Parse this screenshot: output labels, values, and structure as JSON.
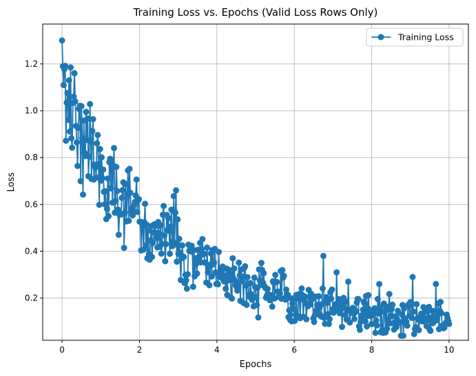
{
  "chart_data": {
    "type": "line",
    "title": "Training Loss vs. Epochs (Valid Loss Rows Only)",
    "xlabel": "Epochs",
    "ylabel": "Loss",
    "xlim": [
      -0.5,
      10.5
    ],
    "ylim": [
      0.02,
      1.37
    ],
    "xticks": [
      0,
      2,
      4,
      6,
      8,
      10
    ],
    "yticks": [
      0.2,
      0.4,
      0.6,
      0.8,
      1.0,
      1.2
    ],
    "ytick_labels": [
      "0.2",
      "0.4",
      "0.6",
      "0.8",
      "1.0",
      "1.2"
    ],
    "grid": true,
    "legend_position": "top-right",
    "series": [
      {
        "name": "Training Loss",
        "color": "#1f77b4",
        "marker": "circle",
        "anchors": [
          [
            0.0,
            1.3
          ],
          [
            0.02,
            1.19
          ],
          [
            0.05,
            1.07
          ],
          [
            0.1,
            1.04
          ],
          [
            0.15,
            1.02
          ],
          [
            0.2,
            0.98
          ],
          [
            0.25,
            0.96
          ],
          [
            0.3,
            1.06
          ],
          [
            0.35,
            0.94
          ],
          [
            0.45,
            0.92
          ],
          [
            0.55,
            0.88
          ],
          [
            0.65,
            0.9
          ],
          [
            0.75,
            0.84
          ],
          [
            0.85,
            0.8
          ],
          [
            0.95,
            0.77
          ],
          [
            1.05,
            0.73
          ],
          [
            1.15,
            0.68
          ],
          [
            1.25,
            0.7
          ],
          [
            1.4,
            0.66
          ],
          [
            1.55,
            0.63
          ],
          [
            1.7,
            0.64
          ],
          [
            1.85,
            0.63
          ],
          [
            1.95,
            0.58
          ],
          [
            2.05,
            0.48
          ],
          [
            2.2,
            0.45
          ],
          [
            2.4,
            0.47
          ],
          [
            2.6,
            0.46
          ],
          [
            2.8,
            0.47
          ],
          [
            2.95,
            0.48
          ],
          [
            3.05,
            0.35
          ],
          [
            3.3,
            0.35
          ],
          [
            3.6,
            0.34
          ],
          [
            3.9,
            0.33
          ],
          [
            4.2,
            0.29
          ],
          [
            4.5,
            0.27
          ],
          [
            5.0,
            0.24
          ],
          [
            5.5,
            0.22
          ],
          [
            6.0,
            0.2
          ],
          [
            6.5,
            0.18
          ],
          [
            7.0,
            0.16
          ],
          [
            7.5,
            0.145
          ],
          [
            8.0,
            0.135
          ],
          [
            8.5,
            0.125
          ],
          [
            9.0,
            0.12
          ],
          [
            9.5,
            0.115
          ],
          [
            10.0,
            0.11
          ]
        ],
        "spikes": [
          [
            0.3,
            1.06
          ],
          [
            1.22,
            0.78
          ],
          [
            1.2,
            0.55
          ],
          [
            1.72,
            0.53
          ],
          [
            2.2,
            0.37
          ],
          [
            2.95,
            0.66
          ],
          [
            4.4,
            0.37
          ],
          [
            3.95,
            0.41
          ],
          [
            5.15,
            0.35
          ],
          [
            6.75,
            0.38
          ],
          [
            7.1,
            0.31
          ],
          [
            7.4,
            0.27
          ],
          [
            8.2,
            0.26
          ],
          [
            9.05,
            0.29
          ],
          [
            9.65,
            0.26
          ],
          [
            9.9,
            0.09
          ],
          [
            10.0,
            0.09
          ]
        ],
        "n_points": 500
      }
    ]
  }
}
